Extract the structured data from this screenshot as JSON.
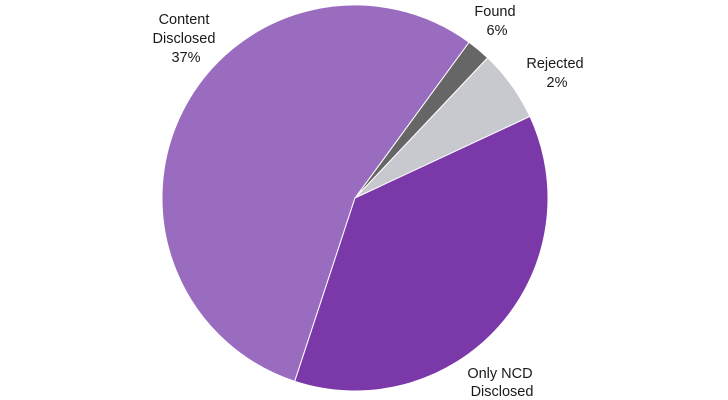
{
  "chart_data": {
    "type": "pie",
    "title": "",
    "slices": [
      {
        "category": "Found",
        "value": 6,
        "label_lines": [
          "Found",
          "6%"
        ],
        "color": "#c8c8cf"
      },
      {
        "category": "Rejected",
        "value": 2,
        "label_lines": [
          "Rejected",
          "2%"
        ],
        "color": "#666666"
      },
      {
        "category": "Only NCD Disclosed",
        "value": 55,
        "label_lines": [
          "Only NCD",
          "Disclosed"
        ],
        "color": "#9a6cc0"
      },
      {
        "category": "Content Disclosed",
        "value": 37,
        "label_lines": [
          "Content",
          "Disclosed",
          "37%"
        ],
        "color": "#7a38a8"
      }
    ],
    "legend": "none"
  }
}
